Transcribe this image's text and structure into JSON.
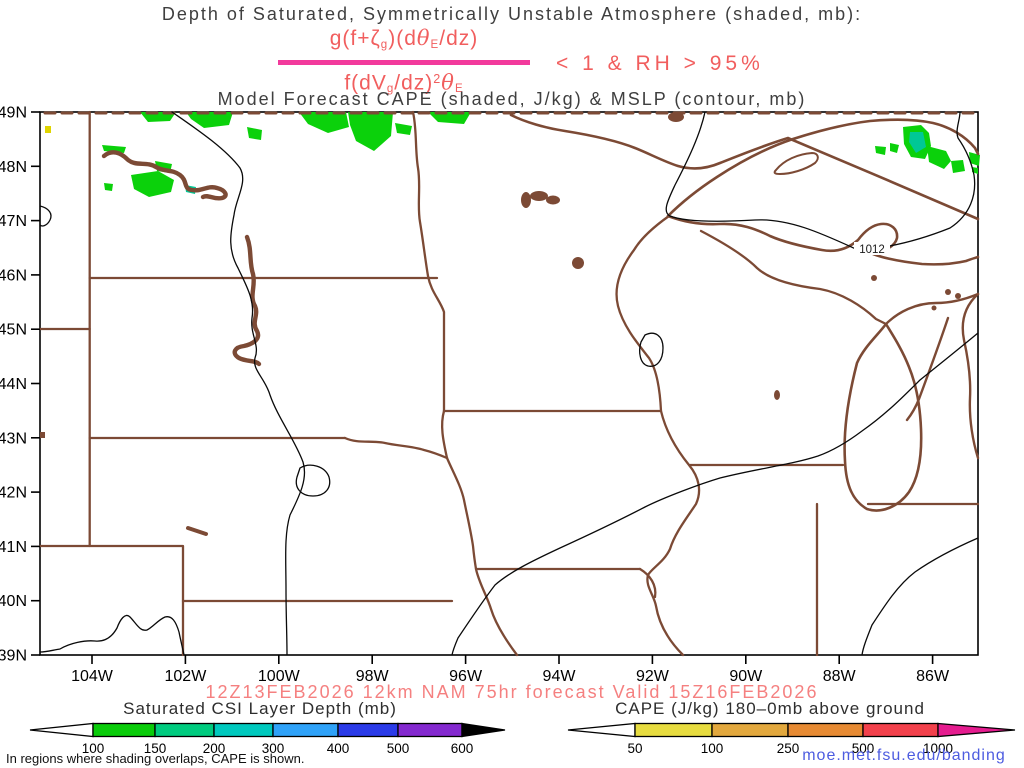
{
  "header": {
    "title": "Depth of Saturated, Symmetrically Unstable Atmosphere (shaded, mb):",
    "subtitle": "Model Forecast CAPE (shaded, J/kg) & MSLP (contour, mb)",
    "formula": {
      "n1": "g(f+ζ",
      "n2": "g",
      "n3": ")(d",
      "n4": "θ",
      "n5": "E",
      "n6": "/dz)",
      "d1": "f(dV",
      "d2": "g",
      "d3": "/dz)",
      "d4": "2",
      "d5": "θ",
      "d6": "E",
      "condition": "< 1 & RH > 95%"
    }
  },
  "map": {
    "lat_labels": [
      "49N",
      "48N",
      "47N",
      "46N",
      "45N",
      "44N",
      "43N",
      "42N",
      "41N",
      "40N",
      "39N"
    ],
    "lon_labels": [
      "104W",
      "102W",
      "100W",
      "98W",
      "96W",
      "94W",
      "92W",
      "90W",
      "88W",
      "86W"
    ],
    "contour_label": "1012"
  },
  "footer": {
    "forecast_line": "12Z13FEB2026 12km NAM 75hr forecast Valid 15Z16FEB2026",
    "note": "In regions where shading overlaps, CAPE is shown.",
    "url": "moe.met.fsu.edu/banding",
    "legend_left": {
      "title": "Saturated CSI Layer Depth (mb)",
      "tick_labels": [
        "100",
        "150",
        "200",
        "300",
        "400",
        "500",
        "600"
      ],
      "colors": [
        "#0acb0a",
        "#00cb7f",
        "#00c9be",
        "#2fa2f8",
        "#2b3be8",
        "#8429cf"
      ],
      "overflow_color": "#000000"
    },
    "legend_right": {
      "title": "CAPE (J/kg) 180–0mb above ground",
      "tick_labels": [
        "50",
        "100",
        "250",
        "500",
        "1000"
      ],
      "colors": [
        "#e7dc40",
        "#e2a83e",
        "#e68a33",
        "#f2414c"
      ],
      "overflow_color": "#e51c8f"
    }
  },
  "colors": {
    "map_lines_brown": "#7c4a35",
    "contour_black": "#000000",
    "shade_green": "#0bd10b",
    "shade_teal": "#00c896",
    "shade_yellow": "#dfd400",
    "title_gray": "#3f3f3f",
    "formula_red": "#f15e5e",
    "fraction_bar_pink": "#f23a9c",
    "forecast_pink": "#f58080",
    "url_blue": "#4d5ce0"
  },
  "chart_data": {
    "type": "map-contour",
    "title": "Depth of Saturated, Symmetrically Unstable Atmosphere (shaded, mb)",
    "subtitle": "Model Forecast CAPE (shaded, J/kg) & MSLP (contour, mb)",
    "condition": "g(f+ζg)(dθE/dz) / f(dVg/dz)²θE < 1 & RH > 95%",
    "region": {
      "lat_deg_N": [
        39,
        49
      ],
      "lon_deg_W": [
        105.1,
        84.9
      ]
    },
    "x_tick_labels": [
      "104W",
      "102W",
      "100W",
      "98W",
      "96W",
      "94W",
      "92W",
      "90W",
      "88W",
      "86W"
    ],
    "y_tick_labels": [
      "49N",
      "48N",
      "47N",
      "46N",
      "45N",
      "44N",
      "43N",
      "42N",
      "41N",
      "40N",
      "39N"
    ],
    "contours": [
      {
        "variable": "MSLP",
        "unit": "mb",
        "labeled_value": 1012
      }
    ],
    "shading": [
      {
        "variable": "Saturated CSI Layer Depth",
        "unit": "mb",
        "scale_breaks": [
          100,
          150,
          200,
          300,
          400,
          500,
          600
        ],
        "colors": [
          "#0acb0a",
          "#00cb7f",
          "#00c9be",
          "#2fa2f8",
          "#2b3be8",
          "#8429cf"
        ],
        "regions": "patches of 100-200 mb along the northern border in western North Dakota and along the northeast shore of Lake Superior"
      },
      {
        "variable": "CAPE 180-0mb above ground",
        "unit": "J/kg",
        "scale_breaks": [
          50,
          100,
          250,
          500,
          1000
        ],
        "colors": [
          "#e7dc40",
          "#e2a83e",
          "#e68a33",
          "#f2414c"
        ],
        "regions": "tiny 50-100 J/kg spot near the northwest map corner"
      }
    ],
    "forecast": "12Z13FEB2026 12km NAM 75hr forecast Valid 15Z16FEB2026"
  }
}
